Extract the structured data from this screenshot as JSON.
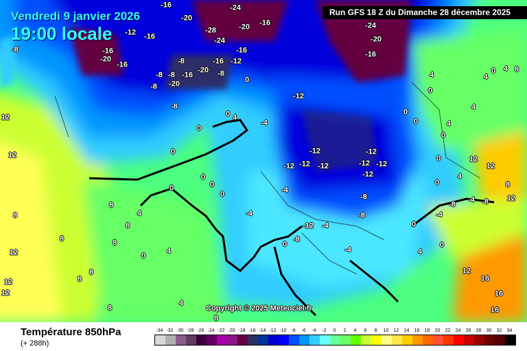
{
  "header": {
    "date": "Vendredi 9 janvier 2026",
    "time": "19:00 locale",
    "run": "Run GFS 18 Z du Dimanche 28 décembre 2025"
  },
  "copyright": "Copyright © 2025 Meteociel.fr",
  "footer": {
    "title": "Température 850hPa",
    "subtitle": "(+ 288h)"
  },
  "scale": {
    "ticks": [
      "-34",
      "-32",
      "-30",
      "-28",
      "-26",
      "-24",
      "-22",
      "-20",
      "-18",
      "-16",
      "-14",
      "-12",
      "-10",
      "-8",
      "-6",
      "-4",
      "-2",
      "0",
      "2",
      "4",
      "6",
      "8",
      "10",
      "12",
      "14",
      "16",
      "18",
      "20",
      "22",
      "24",
      "26",
      "28",
      "30",
      "32",
      "34"
    ],
    "colors": [
      "#d8d8d8",
      "#b0b0b0",
      "#8c5e8c",
      "#603c60",
      "#3c003c",
      "#640064",
      "#a800a8",
      "#8c148c",
      "#640040",
      "#2e2e66",
      "#003399",
      "#0000cc",
      "#0000ff",
      "#0050ff",
      "#0096ff",
      "#33ccff",
      "#66ffff",
      "#66ff99",
      "#66ff66",
      "#66ff00",
      "#ccff33",
      "#ffff00",
      "#ffff88",
      "#ffe64d",
      "#ffcc00",
      "#ff9900",
      "#ff6600",
      "#ff5033",
      "#ff3300",
      "#ff0000",
      "#cc0000",
      "#990000",
      "#6a0000",
      "#500000",
      "#000000"
    ]
  },
  "map_labels": [
    "-16",
    "-24",
    "-20",
    "-12",
    "-16",
    "-28",
    "-20",
    "-16",
    "-24",
    "-24",
    "-20",
    "-16",
    "-8",
    "-16",
    "-20",
    "-16",
    "-16",
    "-8",
    "-8",
    "-20",
    "-16",
    "-12",
    "-8",
    "-8",
    "-20",
    "-16",
    "-8",
    "0",
    "-12",
    "-8",
    "0",
    "0",
    "4",
    "-4",
    "0",
    "-12",
    "-12",
    "-12",
    "-12",
    "-12",
    "-12",
    "-12",
    "-12",
    "0",
    "0",
    "0",
    "0",
    "-4",
    "-8",
    "-8",
    "-4",
    "0",
    "0",
    "-8",
    "-12",
    "-4",
    "8",
    "8",
    "12",
    "12",
    "12",
    "8",
    "8",
    "4",
    "4",
    "8",
    "0",
    "8",
    "8",
    "12",
    "12",
    "8",
    "4",
    "8",
    "-4",
    "4",
    "12",
    "16",
    "16",
    "16",
    "0",
    "8",
    "12",
    "12",
    "4",
    "12",
    "4",
    "0",
    "0",
    "0",
    "4",
    "4",
    "4",
    "8",
    "0",
    "4",
    "0",
    "0",
    "0",
    "-4",
    "-8",
    "-4",
    "-8"
  ]
}
